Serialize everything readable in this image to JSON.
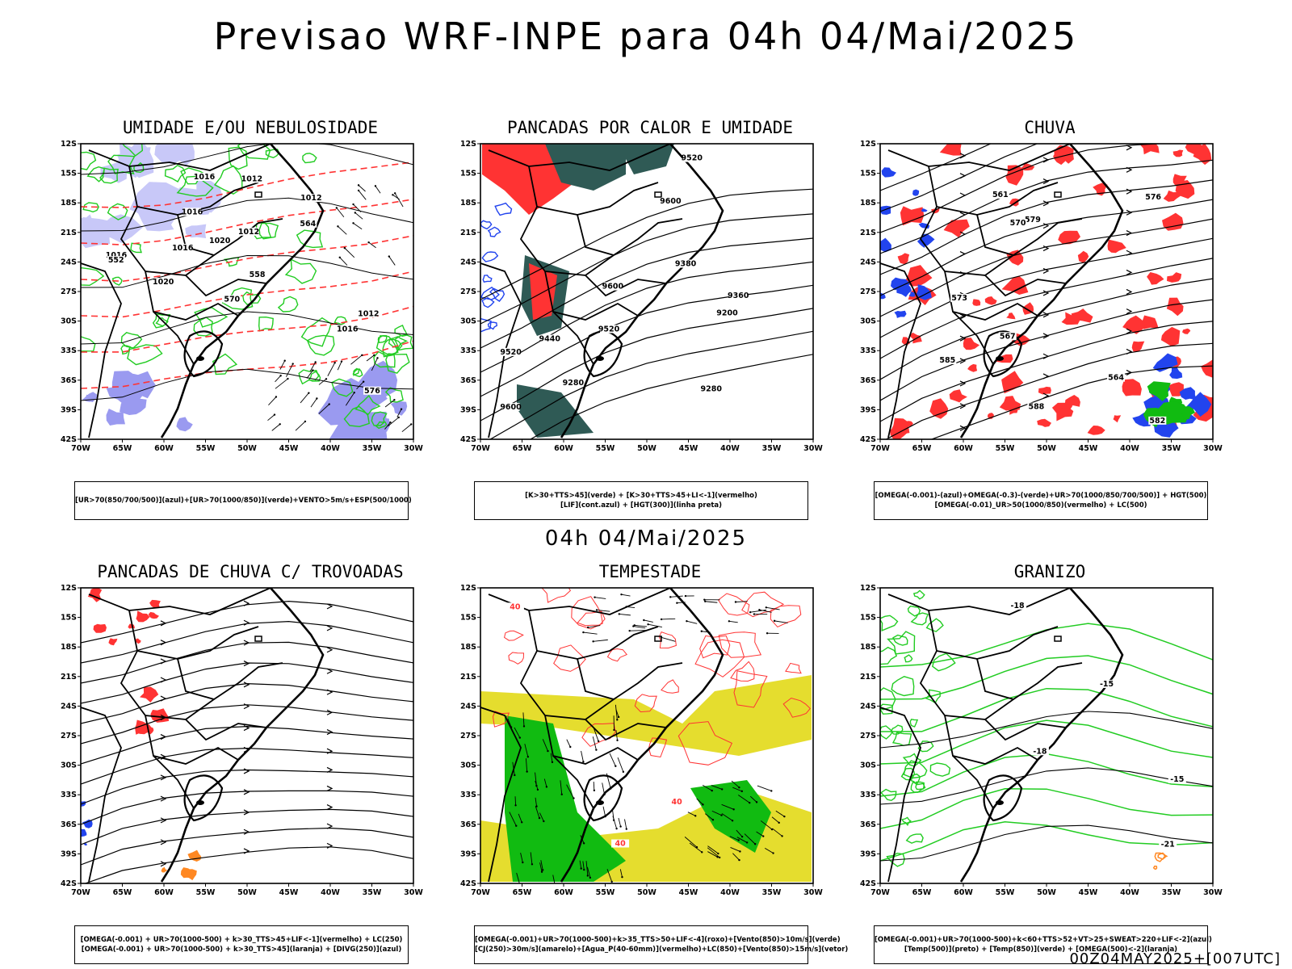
{
  "title": "Previsao WRF-INPE  para 04h 04/Mai/2025",
  "mid_title": "04h 04/Mai/2025",
  "stamp": "00Z04MAY2025+[007UTC]",
  "axes": {
    "lat": [
      "12S",
      "15S",
      "18S",
      "21S",
      "24S",
      "27S",
      "30S",
      "33S",
      "36S",
      "39S",
      "42S"
    ],
    "lon": [
      "70W",
      "65W",
      "60W",
      "55W",
      "50W",
      "45W",
      "40W",
      "35W",
      "30W"
    ]
  },
  "panels": [
    {
      "title": "UMIDADE E/OU NEBULOSIDADE",
      "legend": [
        "[UR>70(850/700/500)](azul)+[UR>70(1000/850)](verde)+VENTO>5m/s+ESP(500/1000)"
      ],
      "labels": [
        "1016",
        "1016",
        "1012",
        "1012",
        "1020",
        "1016",
        "1020",
        "1012",
        "1016",
        "1016",
        "1012",
        "576",
        "570",
        "564",
        "558",
        "552"
      ]
    },
    {
      "title": "PANCADAS POR CALOR E UMIDADE",
      "legend": [
        "[K>30+TTS>45](verde) + [K>30+TTS>45+LI<-1](vermelho)",
        "[LIF](cont.azul) + [HGT(300)](linha preta)"
      ],
      "labels": [
        "9600",
        "9520",
        "9600",
        "9600",
        "9520",
        "9520",
        "9440",
        "9380",
        "9360",
        "9280",
        "9200",
        "9280"
      ]
    },
    {
      "title": "CHUVA",
      "legend": [
        "[OMEGA(-0.001)-(azul)+OMEGA(-0.3)-(verde)+UR>70(1000/850/700/500)] + HGT(500)",
        "[OMEGA(-0.01)_UR>50(1000/850)(vermelho) + LC(500)"
      ],
      "labels": [
        "585",
        "588",
        "582",
        "579",
        "576",
        "573",
        "570",
        "567",
        "564",
        "561"
      ]
    },
    {
      "title": "PANCADAS DE CHUVA C/ TROVOADAS",
      "legend": [
        "[OMEGA(-0.001) + UR>70(1000-500) + k>30_TTS>45+LIF<-1](vermelho) + LC(250)",
        "[OMEGA(-0.001) + UR>70(1000-500) + k>30_TTS>45](laranja) + [DIVG(250)](azul)"
      ],
      "labels": []
    },
    {
      "title": "TEMPESTADE",
      "legend": [
        "[OMEGA(-0.001)+UR>70(1000-500)+k>35_TTS>50+LIF<-4](roxo)+[Vento(850)>10m/s](verde)",
        "[CJ(250)>30m/s](amarelo)+[Agua_P(40-60mm)](vermelho)+LC(850)+[Vento(850)>15m/s](vetor)"
      ],
      "labels": [
        "40",
        "40",
        "40"
      ]
    },
    {
      "title": "GRANIZO",
      "legend": [
        "[OMEGA(-0.001)+UR>70(1000-500)+k<60+TTS>52+VT>25+SWEAT>220+LIF<-2](azul)",
        "[Temp(500)](preto) + [Temp(850)](verde) + [OMEGA(500)<-2](laranja)"
      ],
      "labels": [
        "-15",
        "-18",
        "-21",
        "-18",
        "-15"
      ]
    }
  ],
  "colors": {
    "blue_fill": "#9a9af0",
    "blue_light": "#c8c8f8",
    "green": "#22cc22",
    "red": "#ff3333",
    "dark_teal": "#2f5a55",
    "yellow": "#e5dd2e",
    "bright_green": "#11bb11",
    "orange": "#ff8822",
    "blue": "#2244ee"
  }
}
